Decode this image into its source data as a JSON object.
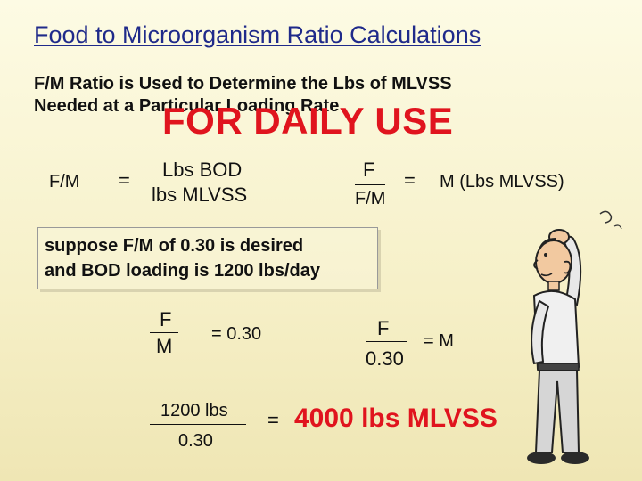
{
  "slide": {
    "title": "Food to Microorganism Ratio Calculations",
    "intro_line1": "F/M  Ratio is Used to Determine the Lbs of MLVSS",
    "intro_line2": "Needed at a Particular Loading Rate",
    "stamp": "FOR DAILY USE"
  },
  "formula1": {
    "lhs": "F/M",
    "equals": "=",
    "numerator": "Lbs BOD",
    "denominator": "lbs MLVSS"
  },
  "formula2": {
    "numerator": "F",
    "denominator": "F/M",
    "equals": "=",
    "result": "M (Lbs MLVSS)"
  },
  "example": {
    "line1": "suppose F/M of 0.30 is desired",
    "line2": "and BOD loading is 1200 lbs/day"
  },
  "step1": {
    "numerator": "F",
    "denominator": "M",
    "rhs": "=  0.30"
  },
  "step2": {
    "numerator": "F",
    "denominator": "0.30",
    "rhs": "=  M"
  },
  "step3": {
    "numerator": "1200 lbs",
    "denominator": "0.30",
    "equals": "=",
    "result": "4000 lbs MLVSS"
  },
  "colors": {
    "title": "#1f2a8a",
    "highlight": "#e0141e",
    "background": "#fdfbe4"
  },
  "figure": {
    "icon": "confused-man-scratching-head-icon"
  }
}
